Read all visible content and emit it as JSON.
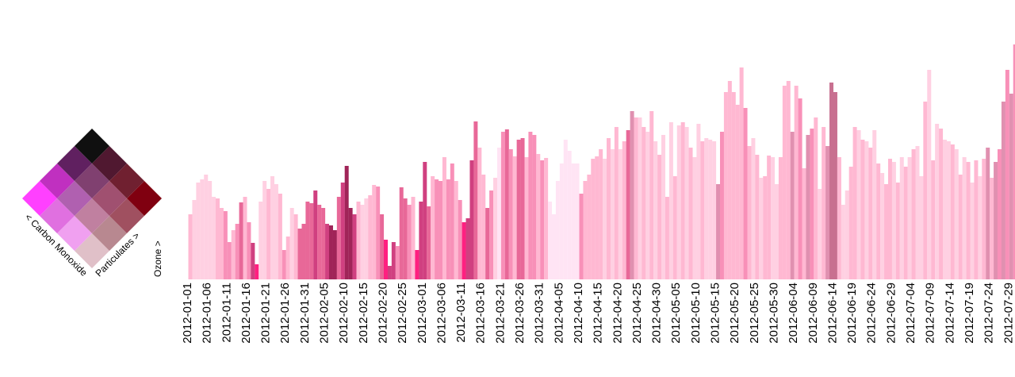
{
  "chart_data": {
    "type": "bar",
    "legend": {
      "x_label": "< Carbon Monoxide",
      "y_label": "Particulates >",
      "value_label": "Ozone >",
      "colors": [
        [
          "#e0c0c8",
          "#b88890",
          "#a05060",
          "#800010"
        ],
        [
          "#f0a0f0",
          "#c080a0",
          "#a05070",
          "#702030"
        ],
        [
          "#e070e0",
          "#b060b0",
          "#804070",
          "#501830"
        ],
        [
          "#ff40ff",
          "#c030c0",
          "#602060",
          "#101010"
        ]
      ]
    },
    "categories": [
      "2012-01-01",
      null,
      null,
      null,
      null,
      "2012-01-06",
      null,
      null,
      null,
      null,
      "2012-01-11",
      null,
      null,
      null,
      null,
      "2012-01-16",
      null,
      null,
      null,
      null,
      "2012-01-21",
      null,
      null,
      null,
      null,
      "2012-01-26",
      null,
      null,
      null,
      null,
      "2012-01-31",
      null,
      null,
      null,
      null,
      "2012-02-05",
      null,
      null,
      null,
      null,
      "2012-02-10",
      null,
      null,
      null,
      null,
      "2012-02-15",
      null,
      null,
      null,
      null,
      "2012-02-20",
      null,
      null,
      null,
      null,
      "2012-02-25",
      null,
      null,
      null,
      null,
      "2012-03-01",
      null,
      null,
      null,
      null,
      "2012-03-06",
      null,
      null,
      null,
      null,
      "2012-03-11",
      null,
      null,
      null,
      null,
      "2012-03-16",
      null,
      null,
      null,
      null,
      "2012-03-21",
      null,
      null,
      null,
      null,
      "2012-03-26",
      null,
      null,
      null,
      null,
      "2012-03-31",
      null,
      null,
      null,
      null,
      "2012-04-05",
      null,
      null,
      null,
      null,
      "2012-04-10",
      null,
      null,
      null,
      null,
      "2012-04-15",
      null,
      null,
      null,
      null,
      "2012-04-20",
      null,
      null,
      null,
      null,
      "2012-04-25",
      null,
      null,
      null,
      null,
      "2012-04-30",
      null,
      null,
      null,
      null,
      "2012-05-05",
      null,
      null,
      null,
      null,
      "2012-05-10",
      null,
      null,
      null,
      null,
      "2012-05-15",
      null,
      null,
      null,
      null,
      "2012-05-20",
      null,
      null,
      null,
      null,
      "2012-05-25",
      null,
      null,
      null,
      null,
      "2012-05-30",
      null,
      null,
      null,
      null,
      "2012-06-04",
      null,
      null,
      null,
      null,
      "2012-06-09",
      null,
      null,
      null,
      null,
      "2012-06-14",
      null,
      null,
      null,
      null,
      "2012-06-19",
      null,
      null,
      null,
      null,
      "2012-06-24",
      null,
      null,
      null,
      null,
      "2012-06-29",
      null,
      null,
      null,
      null,
      "2012-07-04",
      null,
      null,
      null,
      null,
      "2012-07-09",
      null,
      null,
      null,
      null,
      "2012-07-14",
      null,
      null,
      null,
      null,
      "2012-07-19",
      null,
      null,
      null,
      null,
      "2012-07-24",
      null,
      null,
      null,
      null,
      "2012-07-29",
      null
    ],
    "values": [
      82,
      100,
      122,
      126,
      132,
      124,
      104,
      102,
      90,
      86,
      47,
      62,
      70,
      97,
      104,
      72,
      46,
      19,
      98,
      124,
      114,
      130,
      120,
      108,
      37,
      54,
      90,
      82,
      64,
      70,
      98,
      96,
      112,
      94,
      90,
      70,
      68,
      62,
      104,
      122,
      143,
      90,
      82,
      98,
      94,
      102,
      106,
      119,
      117,
      82,
      50,
      17,
      47,
      42,
      116,
      102,
      94,
      104,
      37,
      98,
      148,
      92,
      130,
      126,
      124,
      154,
      126,
      146,
      124,
      100,
      72,
      77,
      150,
      199,
      166,
      132,
      90,
      112,
      128,
      166,
      186,
      189,
      164,
      155,
      176,
      178,
      154,
      186,
      182,
      158,
      150,
      153,
      98,
      82,
      124,
      146,
      176,
      162,
      146,
      146,
      108,
      124,
      132,
      152,
      155,
      164,
      152,
      178,
      164,
      192,
      164,
      174,
      188,
      212,
      204,
      204,
      192,
      186,
      212,
      174,
      157,
      182,
      104,
      198,
      130,
      194,
      198,
      192,
      166,
      154,
      196,
      174,
      178,
      176,
      174,
      120,
      186,
      236,
      250,
      236,
      220,
      267,
      216,
      168,
      178,
      157,
      128,
      130,
      156,
      154,
      120,
      154,
      244,
      250,
      186,
      244,
      228,
      140,
      182,
      190,
      204,
      114,
      192,
      168,
      248,
      236,
      154,
      94,
      112,
      142,
      192,
      188,
      176,
      174,
      166,
      188,
      146,
      134,
      120,
      152,
      148,
      122,
      154,
      142,
      154,
      164,
      168,
      130,
      224,
      264,
      150,
      196,
      190,
      176,
      174,
      170,
      164,
      132,
      154,
      148,
      122,
      150,
      130,
      152,
      166,
      128,
      148,
      164,
      224,
      264,
      234,
      296
    ],
    "colors": [
      "#ffb8d2",
      "#ffd0e2",
      "#ffd0e2",
      "#ffd0e2",
      "#ffd0e2",
      "#ffd0e2",
      "#ffd0e2",
      "#ffb8d2",
      "#ffb8d2",
      "#f890b8",
      "#f890b8",
      "#ffb8d2",
      "#f890b8",
      "#e86898",
      "#ffb8d2",
      "#f890b8",
      "#d04080",
      "#ff2080",
      "#ffd0e2",
      "#ffd0e2",
      "#ffb8d2",
      "#ffd0e2",
      "#ffd0e2",
      "#ffb8d2",
      "#f890b8",
      "#ffb8d2",
      "#ffd0e2",
      "#ffb8d2",
      "#e86898",
      "#e86898",
      "#e86898",
      "#e86898",
      "#d04080",
      "#e86898",
      "#e86898",
      "#d04080",
      "#a02458",
      "#a02458",
      "#e86898",
      "#d04080",
      "#a02458",
      "#a02458",
      "#d04080",
      "#ffb8d2",
      "#ffd0e2",
      "#ffd0e2",
      "#ffb8d2",
      "#ffb8d2",
      "#f890b8",
      "#e86898",
      "#ff2080",
      "#d04080",
      "#d04080",
      "#f890b8",
      "#e86898",
      "#e86898",
      "#f890b8",
      "#ffb8d2",
      "#ff2080",
      "#d04080",
      "#d04080",
      "#e86898",
      "#ffb8d2",
      "#f890b8",
      "#f890b8",
      "#ffb8d2",
      "#f890b8",
      "#f890b8",
      "#ffb8d2",
      "#f890b8",
      "#ff2080",
      "#d04080",
      "#d04080",
      "#e86898",
      "#ffb8d2",
      "#ffb8d2",
      "#e86898",
      "#f890b8",
      "#ffd0e2",
      "#ffe4f4",
      "#f890b8",
      "#e86898",
      "#f890b8",
      "#ffb8d2",
      "#e86898",
      "#e86898",
      "#ffb8d2",
      "#f890b8",
      "#f890b8",
      "#ffb8d2",
      "#f890b8",
      "#ffb8d2",
      "#ffe4f4",
      "#ffe4f4",
      "#ffe4f4",
      "#ffe4f4",
      "#ffe4f4",
      "#ffe4f4",
      "#ffe4f4",
      "#ffe4f4",
      "#f890b8",
      "#ffb8d2",
      "#ffb8d2",
      "#ffb8d2",
      "#ffb8d2",
      "#ffb8d2",
      "#ffd0e2",
      "#ffb8d2",
      "#ffd0e2",
      "#ffb8d2",
      "#ffd0e2",
      "#ffb8d2",
      "#e86898",
      "#e090b0",
      "#ffb8d2",
      "#ffd0e2",
      "#ffb8d2",
      "#ffd0e2",
      "#ffb8d2",
      "#ffd0e2",
      "#ffb8d2",
      "#ffd0e2",
      "#ffb8d2",
      "#ffd0e2",
      "#ffb8d2",
      "#ffd0e2",
      "#ffb8d2",
      "#ffd0e2",
      "#ffb8d2",
      "#ffd0e2",
      "#ffd0e2",
      "#ffb8d2",
      "#ffd0e2",
      "#ffd0e2",
      "#ffd0e2",
      "#e090b0",
      "#f890b8",
      "#ffb8d2",
      "#ffb8d2",
      "#ffb8d2",
      "#ffb8d2",
      "#ffb8d2",
      "#f890b8",
      "#ffb8d2",
      "#ffd0e2",
      "#ffb8d2",
      "#ffd0e2",
      "#ffb8d2",
      "#ffb8d2",
      "#ffd0e2",
      "#ffd0e2",
      "#ffb8d2",
      "#ffb8d2",
      "#ffb8d2",
      "#e090b0",
      "#ffb8d2",
      "#f890b8",
      "#ffb8d2",
      "#e090b0",
      "#f890b8",
      "#ffb8d2",
      "#ffd0e2",
      "#ffb8d2",
      "#e090b0",
      "#c87090",
      "#c87090",
      "#ffb8d2",
      "#ffd0e2",
      "#ffd0e2",
      "#ffb8d2",
      "#ffb8d2",
      "#ffd0e2",
      "#ffb8d2",
      "#ffd0e2",
      "#ffb8d2",
      "#ffd0e2",
      "#ffb8d2",
      "#ffd0e2",
      "#ffb8d2",
      "#ffb8d2",
      "#ffd0e2",
      "#ffb8d2",
      "#ffd0e2",
      "#ffb8d2",
      "#ffd0e2",
      "#ffb8d2",
      "#ffd0e2",
      "#ffd0e2",
      "#ffb8d2",
      "#ffd0e2",
      "#ffb8d2",
      "#ffd0e2",
      "#ffb8d2",
      "#ffd0e2",
      "#ffd0e2",
      "#ffb8d2",
      "#ffd0e2",
      "#ffb8d2",
      "#ffd0e2",
      "#ffb8d2",
      "#ffd0e2",
      "#ffb8d2",
      "#ffd0e2",
      "#ffb8d2",
      "#e090b0",
      "#ffb8d2",
      "#e090b0",
      "#f890b8",
      "#e090b0",
      "#f890b8",
      "#e090b0",
      "#f890b8"
    ],
    "ylim": [
      0,
      300
    ]
  }
}
